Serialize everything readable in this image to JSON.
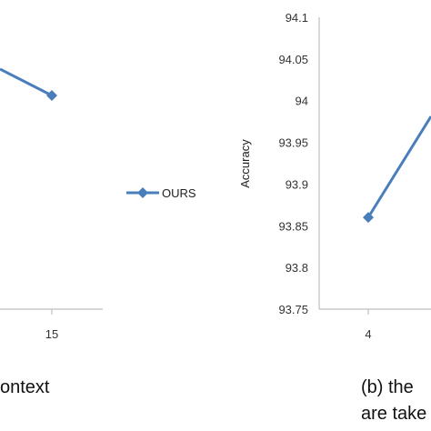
{
  "chart_data": [
    {
      "type": "line",
      "panel": "left (cropped)",
      "x": [
        "15"
      ],
      "series": [
        {
          "name": "OURS",
          "color": "#4a7ebb",
          "marker": "diamond",
          "points": [
            {
              "x": "15",
              "y": null
            }
          ]
        }
      ],
      "x_tick_labels": [
        "15"
      ],
      "legend": {
        "position": "right",
        "entries": [
          "OURS"
        ]
      },
      "caption": "ontext",
      "grid": false
    },
    {
      "type": "line",
      "panel": "right (cropped)",
      "x": [
        "4"
      ],
      "series": [
        {
          "name": "OURS",
          "color": "#4a7ebb",
          "marker": "diamond",
          "points": [
            {
              "x": "4",
              "y": 93.86
            }
          ]
        }
      ],
      "ylabel": "Accuracy",
      "ylim": [
        93.75,
        94.1
      ],
      "y_ticks": [
        "94.1",
        "94.05",
        "94",
        "93.95",
        "93.9",
        "93.85",
        "93.8",
        "93.75"
      ],
      "x_tick_labels": [
        "4"
      ],
      "caption_lines": [
        "(b) the",
        "are take"
      ],
      "grid": false
    }
  ]
}
